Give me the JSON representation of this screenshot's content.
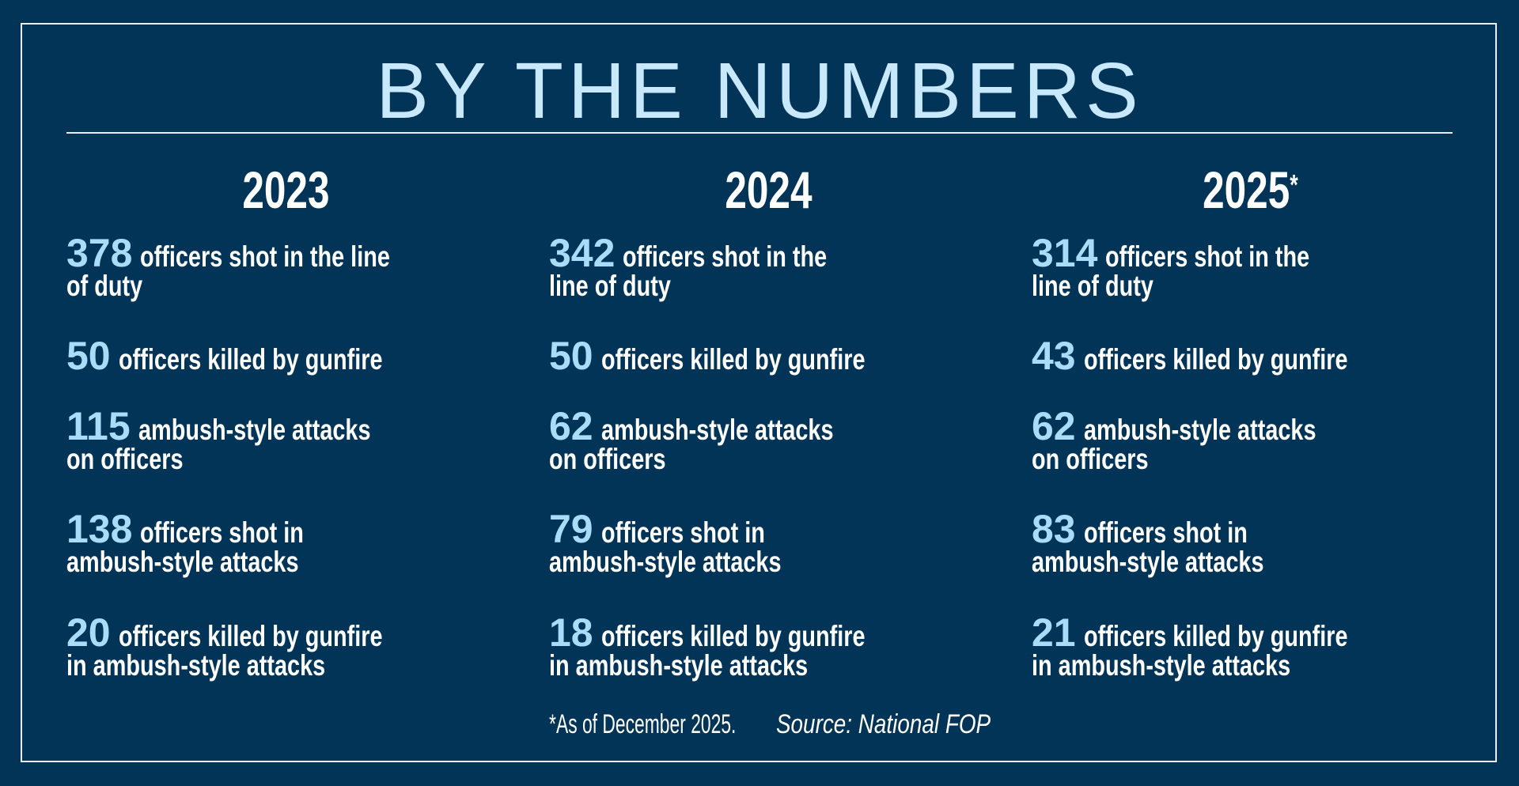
{
  "title": "BY THE NUMBERS",
  "columns": [
    {
      "year": "2023",
      "asterisk": "",
      "entries": [
        {
          "number": "378",
          "line1": "officers shot in the line",
          "line2": "of duty"
        },
        {
          "number": "50",
          "line1": "officers killed by gunfire",
          "line2": ""
        },
        {
          "number": "115",
          "line1": "ambush-style attacks",
          "line2": "on officers"
        },
        {
          "number": "138",
          "line1": "officers shot in",
          "line2": "ambush-style attacks"
        },
        {
          "number": "20",
          "line1": "officers killed by gunfire",
          "line2": "in ambush-style attacks"
        }
      ]
    },
    {
      "year": "2024",
      "asterisk": "",
      "entries": [
        {
          "number": "342",
          "line1": "officers shot in the",
          "line2": "line of duty"
        },
        {
          "number": "50",
          "line1": "officers killed by gunfire",
          "line2": ""
        },
        {
          "number": "62",
          "line1": "ambush-style attacks",
          "line2": "on officers"
        },
        {
          "number": "79",
          "line1": "officers shot in",
          "line2": "ambush-style attacks"
        },
        {
          "number": "18",
          "line1": "officers killed by gunfire",
          "line2": "in ambush-style attacks"
        }
      ]
    },
    {
      "year": "2025",
      "asterisk": "*",
      "entries": [
        {
          "number": "314",
          "line1": "officers shot in the",
          "line2": "line of duty"
        },
        {
          "number": "43",
          "line1": "officers killed by gunfire",
          "line2": ""
        },
        {
          "number": "62",
          "line1": "ambush-style attacks",
          "line2": "on officers"
        },
        {
          "number": "83",
          "line1": "officers shot in",
          "line2": "ambush-style attacks"
        },
        {
          "number": "21",
          "line1": "officers killed by gunfire",
          "line2": "in ambush-style attacks"
        }
      ]
    }
  ],
  "footer": {
    "note": "*As of December 2025.",
    "source": "Source: National FOP"
  },
  "colors": {
    "background": "#023457",
    "title": "#c8e9fb",
    "number": "#a9dcf8",
    "text": "#ffffff"
  }
}
